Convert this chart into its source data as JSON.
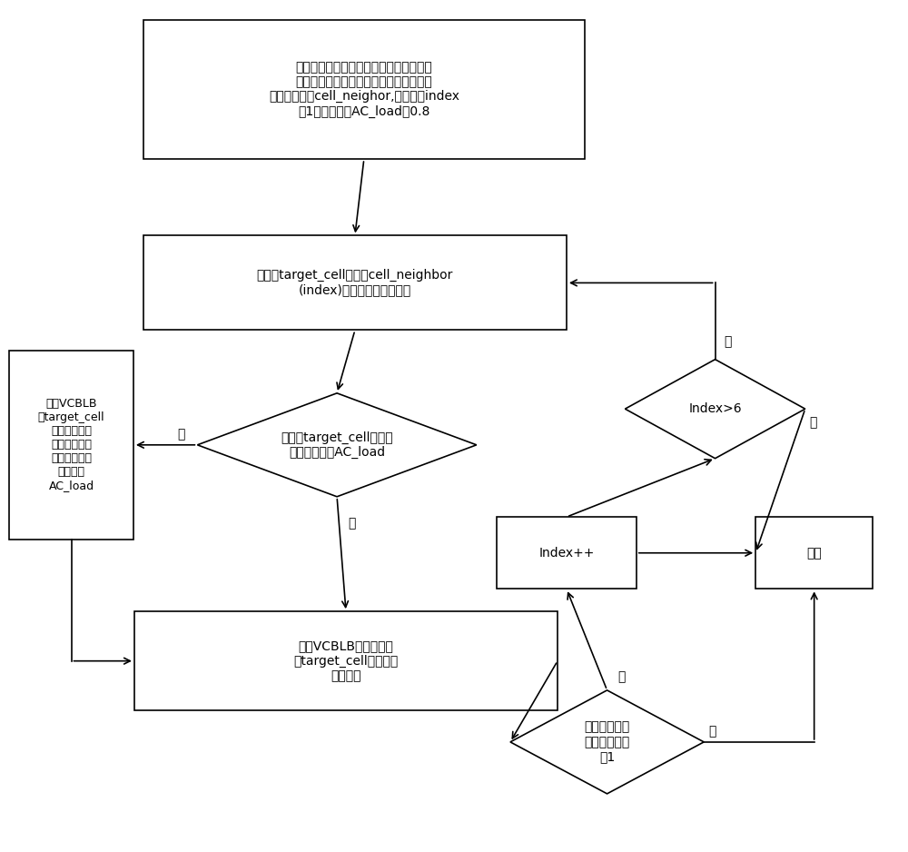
{
  "bg_color": "#ffffff",
  "box1_text": "将负载过重小区设置为中心小区，对其邻\n小区根据负载进行递增排序，生成存储小\n区序号的数组cell_neighor,设置参数index\n为1。设置参数AC_load为0.8",
  "box2_text": "将参数target_cell设置为cell_neighbor\n(index)所代表的小区序号。",
  "diamond1_text": "判断断target_cell小区的\n负载是否大于AC_load",
  "box3_text": "利用VCBLB\n对target_cell\n及其合适邻小\n区进行负载均\n衡知道小区的\n负载小于\nAC_load",
  "box4_text": "利用VCBLB对中心小区\n和target_cell小区进行\n负载均衡",
  "diamond2_text": "判断中心小区\n的负载是否大\n于1",
  "box5_text": "Index++",
  "diamond3_text": "Index>6",
  "box6_text": "结束",
  "yes": "是",
  "no": "否",
  "font_size_main": 10,
  "font_size_small": 9,
  "font_size_label": 10
}
